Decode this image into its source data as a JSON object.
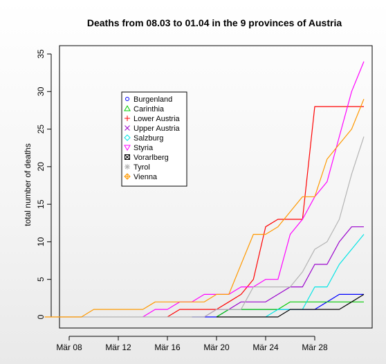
{
  "chart_data": {
    "type": "line",
    "title": "Deaths from 08.03 to 01.04 in the 9 provinces of Austria",
    "xlabel": "",
    "ylabel": "total number of deaths",
    "x_start": "Mär 08",
    "x_end": "Mär 31",
    "xlim": [
      "Mär 08",
      "Mär 31"
    ],
    "ylim": [
      0,
      35
    ],
    "x_ticks": [
      "Mär 08",
      "Mär 12",
      "Mär 16",
      "Mär 20",
      "Mär 24",
      "Mär 28"
    ],
    "y_ticks": [
      "0",
      "5",
      "10",
      "15",
      "20",
      "25",
      "30",
      "35"
    ],
    "grid": false,
    "legend_position": "upper-left",
    "series": [
      {
        "name": "Burgenland",
        "color": "#0000ff",
        "marker": "circle",
        "values": [
          null,
          null,
          null,
          null,
          null,
          null,
          null,
          null,
          null,
          null,
          null,
          null,
          null,
          null,
          null,
          0,
          0,
          0,
          1,
          1,
          1,
          1,
          1,
          1,
          1,
          1,
          2,
          3,
          3,
          3
        ]
      },
      {
        "name": "Carinthia",
        "color": "#00cc00",
        "marker": "triangle",
        "values": [
          null,
          null,
          null,
          null,
          null,
          null,
          null,
          null,
          null,
          null,
          null,
          null,
          null,
          null,
          null,
          null,
          null,
          0,
          1,
          1,
          1,
          1,
          1,
          2,
          2,
          2,
          2,
          2,
          2,
          2
        ]
      },
      {
        "name": "Lower Austria",
        "color": "#ff0000",
        "marker": "plus",
        "values": [
          null,
          null,
          null,
          null,
          null,
          null,
          null,
          null,
          null,
          null,
          null,
          null,
          null,
          0,
          1,
          1,
          1,
          1,
          2,
          3,
          5,
          12,
          13,
          13,
          13,
          28,
          28,
          28,
          28,
          28
        ]
      },
      {
        "name": "Upper Austria",
        "color": "#9900cc",
        "marker": "x",
        "values": [
          null,
          null,
          null,
          null,
          null,
          null,
          null,
          null,
          null,
          null,
          null,
          null,
          null,
          null,
          null,
          null,
          0,
          1,
          1,
          2,
          2,
          2,
          3,
          4,
          4,
          7,
          7,
          10,
          12,
          12
        ]
      },
      {
        "name": "Salzburg",
        "color": "#00e5e5",
        "marker": "diamond",
        "values": [
          null,
          null,
          null,
          null,
          null,
          null,
          null,
          null,
          null,
          null,
          null,
          null,
          null,
          null,
          null,
          null,
          null,
          null,
          null,
          null,
          null,
          null,
          0,
          1,
          1,
          1,
          4,
          4,
          7,
          9,
          11
        ]
      },
      {
        "name": "Styria",
        "color": "#ff00ff",
        "marker": "triangle-down",
        "values": [
          null,
          null,
          null,
          null,
          null,
          null,
          0,
          1,
          1,
          2,
          2,
          3,
          3,
          3,
          4,
          4,
          5,
          5,
          11,
          13,
          16,
          18,
          24,
          30,
          34
        ]
      },
      {
        "name": "Vorarlberg",
        "color": "#000000",
        "marker": "square-x",
        "values": [
          null,
          null,
          null,
          null,
          null,
          null,
          null,
          null,
          null,
          null,
          null,
          null,
          null,
          null,
          null,
          null,
          null,
          0,
          0,
          0,
          0,
          0,
          0,
          1,
          1,
          1,
          1,
          1,
          2,
          3
        ]
      },
      {
        "name": "Tyrol",
        "color": "#b3b3b3",
        "marker": "asterisk",
        "values": [
          0,
          0,
          0,
          0,
          0,
          0,
          0,
          0,
          0,
          0,
          0,
          0,
          0,
          1,
          1,
          1,
          4,
          4,
          4,
          4,
          6,
          9,
          10,
          13,
          19,
          24
        ]
      },
      {
        "name": "Vienna",
        "color": "#ff9900",
        "marker": "diamond-plus",
        "values": [
          0,
          0,
          0,
          0,
          1,
          1,
          1,
          1,
          1,
          2,
          2,
          2,
          2,
          2,
          3,
          3,
          7,
          11,
          11,
          12,
          14,
          16,
          16,
          21,
          23,
          25,
          29
        ]
      }
    ]
  }
}
